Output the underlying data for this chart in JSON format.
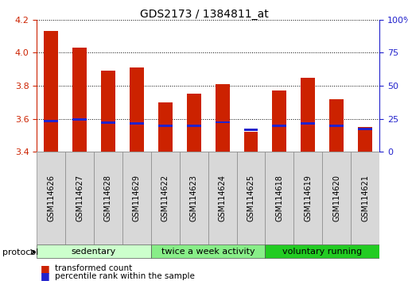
{
  "title": "GDS2173 / 1384811_at",
  "samples": [
    "GSM114626",
    "GSM114627",
    "GSM114628",
    "GSM114629",
    "GSM114622",
    "GSM114623",
    "GSM114624",
    "GSM114625",
    "GSM114618",
    "GSM114619",
    "GSM114620",
    "GSM114621"
  ],
  "transformed_count": [
    4.13,
    4.03,
    3.89,
    3.91,
    3.7,
    3.75,
    3.81,
    3.52,
    3.77,
    3.85,
    3.72,
    3.55
  ],
  "percentile_rank": [
    3.585,
    3.595,
    3.577,
    3.572,
    3.558,
    3.558,
    3.578,
    3.532,
    3.558,
    3.572,
    3.558,
    3.538
  ],
  "bar_bottom": 3.4,
  "ylim": [
    3.4,
    4.2
  ],
  "yticks_left": [
    3.4,
    3.6,
    3.8,
    4.0,
    4.2
  ],
  "right_ytick_vals": [
    0,
    25,
    50,
    75,
    100
  ],
  "right_ytick_pos": [
    3.4,
    3.6,
    3.8,
    4.0,
    4.2
  ],
  "bar_color": "#cc2200",
  "percentile_color": "#2222cc",
  "groups": [
    {
      "label": "sedentary",
      "indices": [
        0,
        1,
        2,
        3
      ],
      "color": "#ccffcc"
    },
    {
      "label": "twice a week activity",
      "indices": [
        4,
        5,
        6,
        7
      ],
      "color": "#88ee88"
    },
    {
      "label": "voluntary running",
      "indices": [
        8,
        9,
        10,
        11
      ],
      "color": "#22cc22"
    }
  ],
  "protocol_label": "protocol",
  "legend_items": [
    {
      "color": "#cc2200",
      "label": "transformed count"
    },
    {
      "color": "#2222cc",
      "label": "percentile rank within the sample"
    }
  ],
  "bar_width": 0.5,
  "title_fontsize": 10,
  "tick_fontsize": 8,
  "group_label_fontsize": 8,
  "sample_fontsize": 7,
  "background_color": "#ffffff",
  "axes_bg": "#ffffff",
  "grid_color": "#000000",
  "right_axis_color": "#2222cc",
  "left_axis_color": "#cc2200",
  "sample_box_color": "#d8d8d8",
  "sample_box_edge": "#888888"
}
